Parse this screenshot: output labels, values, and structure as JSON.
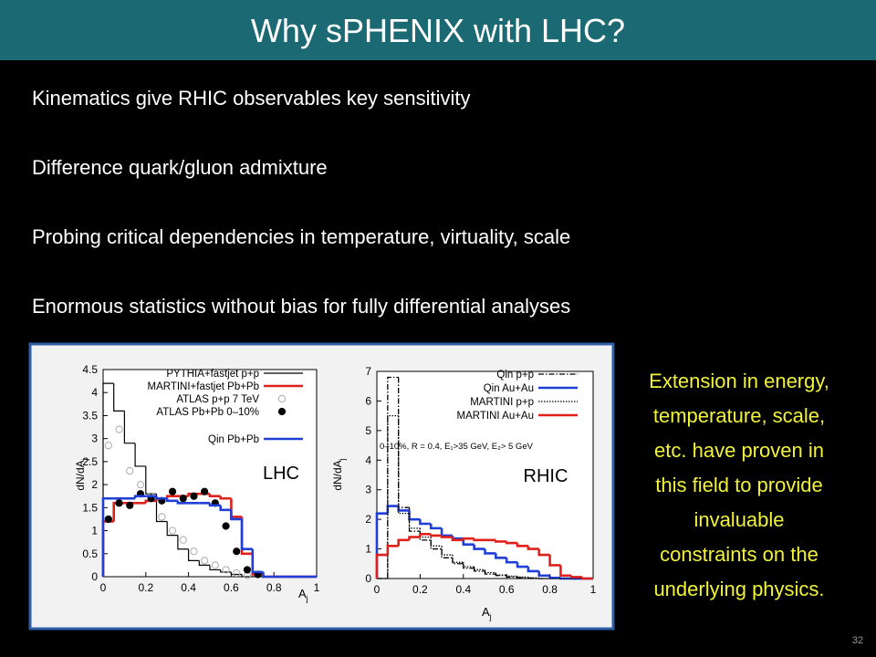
{
  "header": {
    "title": "Why sPHENIX with LHC?"
  },
  "bullets": [
    "Kinematics give RHIC observables key sensitivity",
    "Difference quark/gluon admixture",
    "Probing critical dependencies in temperature, virtuality, scale",
    "Enormous statistics without bias for fully differential analyses"
  ],
  "side_text": [
    "Extension in energy,",
    "temperature, scale,",
    "etc.  have proven in",
    "this field to provide",
    "invaluable",
    "constraints on the",
    "underlying physics."
  ],
  "page_number": 32,
  "chart_data": [
    {
      "type": "histogram",
      "annotation": "LHC",
      "x_label": "A",
      "x_label_sub": "j",
      "y_label": "dN/dA",
      "y_label_sub": "j",
      "xlim": [
        0,
        1
      ],
      "xticks": [
        0,
        0.2,
        0.4,
        0.6,
        0.8,
        1
      ],
      "ylim": [
        0,
        4.5
      ],
      "yticks": [
        0,
        0.5,
        1,
        1.5,
        2,
        2.5,
        3,
        3.5,
        4,
        4.5
      ],
      "bins": [
        0,
        0.05,
        0.1,
        0.15,
        0.2,
        0.25,
        0.3,
        0.35,
        0.4,
        0.45,
        0.5,
        0.55,
        0.6,
        0.65,
        0.7,
        0.75,
        0.8,
        0.85,
        0.9,
        0.95,
        1
      ],
      "series": [
        {
          "name": "PYTHIA+fastjet p+p",
          "color": "#000000",
          "values": [
            4.2,
            3.6,
            2.9,
            2.4,
            1.8,
            1.2,
            0.9,
            0.6,
            0.35,
            0.25,
            0.15,
            0.1,
            0.05,
            0,
            0,
            0,
            0,
            0,
            0,
            0
          ]
        },
        {
          "name": "MARTINI+fastjet Pb+Pb",
          "color": "#e0201b",
          "values": [
            1.2,
            1.6,
            1.6,
            1.6,
            1.65,
            1.7,
            1.75,
            1.75,
            1.8,
            1.8,
            1.75,
            1.7,
            1.3,
            0.5,
            0.05,
            0,
            0,
            0,
            0,
            0
          ]
        },
        {
          "name": "ATLAS p+p 7 TeV",
          "color": "#aaaaaa",
          "marker": "open",
          "x": [
            0.025,
            0.075,
            0.125,
            0.175,
            0.225,
            0.275,
            0.325,
            0.375,
            0.425,
            0.475,
            0.525,
            0.575,
            0.625,
            0.675
          ],
          "values": [
            2.85,
            3.2,
            2.3,
            2.0,
            1.75,
            1.3,
            1.0,
            0.8,
            0.55,
            0.35,
            0.25,
            0.15,
            0.08,
            0.03
          ]
        },
        {
          "name": "ATLAS Pb+Pb 0–10%",
          "color": "#000000",
          "marker": "filled",
          "x": [
            0.025,
            0.075,
            0.125,
            0.175,
            0.225,
            0.275,
            0.325,
            0.375,
            0.425,
            0.475,
            0.525,
            0.575,
            0.625,
            0.675,
            0.725
          ],
          "values": [
            1.25,
            1.6,
            1.55,
            1.8,
            1.7,
            1.65,
            1.85,
            1.7,
            1.75,
            1.85,
            1.6,
            1.1,
            0.55,
            0.15,
            0.05
          ]
        },
        {
          "name": "Qin Pb+Pb",
          "color": "#1f3fd6",
          "values": [
            1.7,
            1.7,
            1.7,
            1.75,
            1.75,
            1.7,
            1.65,
            1.6,
            1.6,
            1.6,
            1.55,
            1.45,
            1.25,
            0.6,
            0.1,
            0,
            0,
            0,
            0,
            0
          ]
        }
      ]
    },
    {
      "type": "histogram",
      "annotation": "RHIC",
      "note": "0–10%, R = 0.4, E₁>35 GeV, E₂> 5 GeV",
      "x_label": "A",
      "x_label_sub": "j",
      "y_label": "dN/dA",
      "y_label_sub": "j",
      "xlim": [
        0,
        1
      ],
      "xticks": [
        0,
        0.2,
        0.4,
        0.6,
        0.8,
        1
      ],
      "ylim": [
        0,
        7
      ],
      "yticks": [
        0,
        1,
        2,
        3,
        4,
        5,
        6,
        7
      ],
      "bins": [
        0,
        0.05,
        0.1,
        0.15,
        0.2,
        0.25,
        0.3,
        0.35,
        0.4,
        0.45,
        0.5,
        0.55,
        0.6,
        0.65,
        0.7,
        0.75,
        0.8,
        0.85,
        0.9,
        0.95,
        1
      ],
      "series": [
        {
          "name": "Qin p+p",
          "color": "#000000",
          "dash": "6,2,1.5,2",
          "values": [
            0,
            6.8,
            2.4,
            1.6,
            1.3,
            1.0,
            0.7,
            0.5,
            0.35,
            0.25,
            0.15,
            0.1,
            0.05,
            0.03,
            0.02,
            0,
            0,
            0,
            0,
            0
          ]
        },
        {
          "name": "Qin Au+Au",
          "color": "#1f3fd6",
          "values": [
            2.2,
            2.45,
            2.3,
            2.0,
            1.85,
            1.7,
            1.45,
            1.35,
            1.15,
            1.0,
            0.85,
            0.7,
            0.55,
            0.4,
            0.25,
            0.1,
            0.02,
            0,
            0,
            0
          ]
        },
        {
          "name": "MARTINI p+p",
          "color": "#000000",
          "dash": "1.5,1.5",
          "values": [
            0,
            5.5,
            2.2,
            1.7,
            1.4,
            1.1,
            0.8,
            0.55,
            0.4,
            0.3,
            0.2,
            0.12,
            0.08,
            0.05,
            0.02,
            0,
            0,
            0,
            0,
            0
          ]
        },
        {
          "name": "MARTINI Au+Au",
          "color": "#e0201b",
          "values": [
            0.8,
            1.1,
            1.3,
            1.4,
            1.5,
            1.45,
            1.4,
            1.3,
            1.35,
            1.3,
            1.3,
            1.25,
            1.2,
            1.1,
            1.0,
            0.8,
            0.45,
            0.1,
            0.05,
            0
          ]
        }
      ]
    }
  ]
}
